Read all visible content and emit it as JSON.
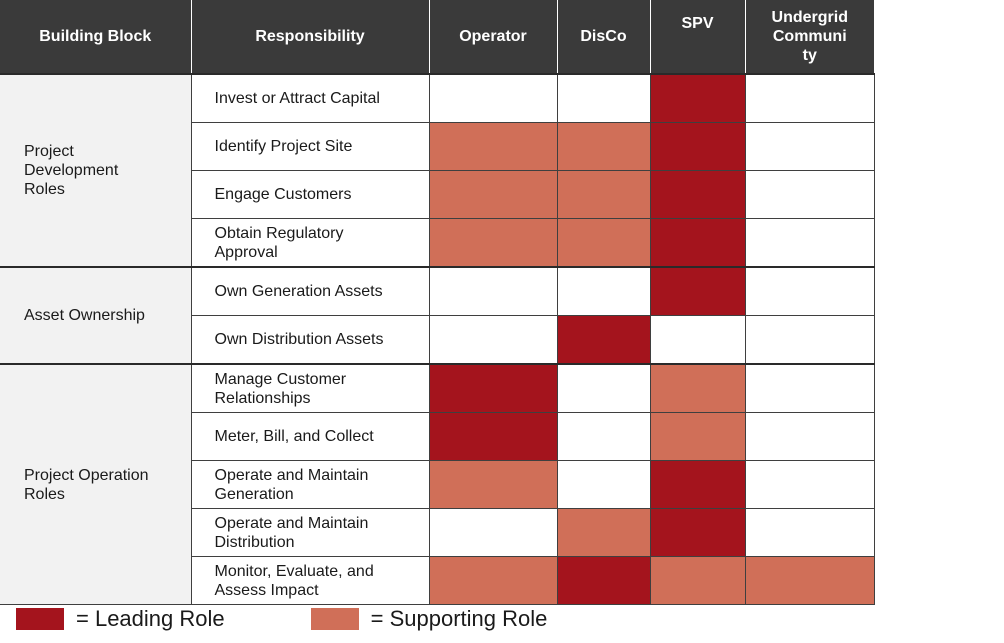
{
  "headers": [
    "Building Block",
    "Responsibility",
    "Operator",
    "DisCo",
    "SPV",
    "Undergrid Community"
  ],
  "header_undergrid_lines": [
    "Undergrid",
    "Communi",
    "ty"
  ],
  "colors": {
    "leading": "#a4141d",
    "supporting": "#d06f58",
    "none": "#ffffff",
    "header_bg": "#3a3a3a"
  },
  "groups": [
    {
      "label_lines": [
        "Project",
        "Development",
        "Roles"
      ],
      "rows": [
        {
          "lines": [
            "Invest or Attract Capital"
          ],
          "roles": [
            "none",
            "none",
            "lead",
            "none"
          ]
        },
        {
          "lines": [
            "Identify Project Site"
          ],
          "roles": [
            "support",
            "support",
            "lead",
            "none"
          ]
        },
        {
          "lines": [
            "Engage Customers"
          ],
          "roles": [
            "support",
            "support",
            "lead",
            "none"
          ]
        },
        {
          "lines": [
            "Obtain Regulatory",
            "Approval"
          ],
          "roles": [
            "support",
            "support",
            "lead",
            "none"
          ]
        }
      ]
    },
    {
      "label_lines": [
        "Asset Ownership"
      ],
      "rows": [
        {
          "lines": [
            "Own Generation Assets"
          ],
          "roles": [
            "none",
            "none",
            "lead",
            "none"
          ]
        },
        {
          "lines": [
            "Own Distribution Assets"
          ],
          "roles": [
            "none",
            "lead",
            "none",
            "none"
          ]
        }
      ]
    },
    {
      "label_lines": [
        "Project Operation",
        "Roles"
      ],
      "rows": [
        {
          "lines": [
            "Manage Customer",
            "Relationships"
          ],
          "roles": [
            "lead",
            "none",
            "support",
            "none"
          ]
        },
        {
          "lines": [
            "Meter, Bill, and Collect"
          ],
          "roles": [
            "lead",
            "none",
            "support",
            "none"
          ]
        },
        {
          "lines": [
            "Operate and Maintain",
            "Generation"
          ],
          "roles": [
            "support",
            "none",
            "lead",
            "none"
          ]
        },
        {
          "lines": [
            "Operate and Maintain",
            "Distribution"
          ],
          "roles": [
            "none",
            "support",
            "lead",
            "none"
          ]
        },
        {
          "lines": [
            "Monitor, Evaluate, and",
            "Assess Impact"
          ],
          "roles": [
            "support",
            "lead",
            "support",
            "support"
          ]
        }
      ]
    }
  ],
  "legend": {
    "leading": "= Leading Role",
    "supporting": "= Supporting Role"
  }
}
